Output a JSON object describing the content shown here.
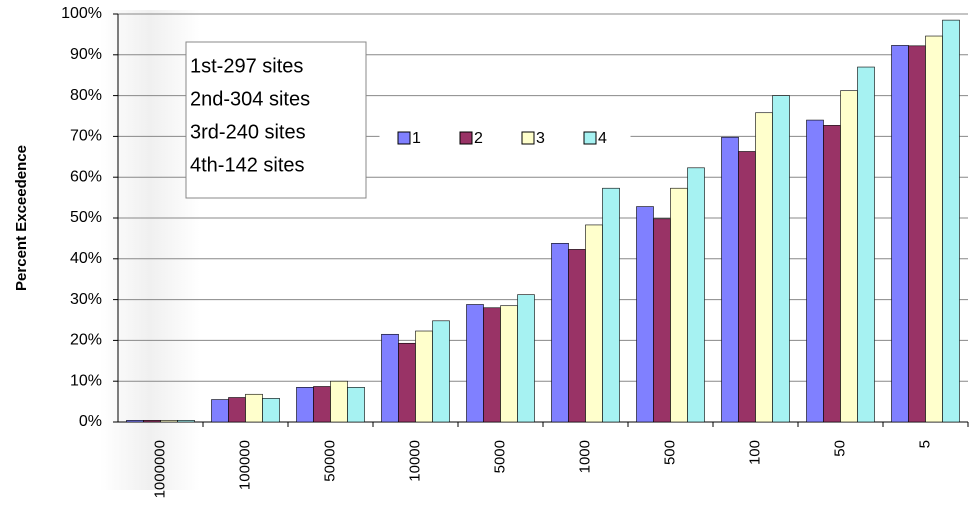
{
  "chart_data": {
    "type": "bar",
    "y_label": "Percent Exceedence",
    "categories": [
      "1000000",
      "100000",
      "50000",
      "10000",
      "5000",
      "1000",
      "500",
      "100",
      "50",
      "5"
    ],
    "series": [
      {
        "name": "1",
        "color": "#8080ff",
        "values": [
          0.4,
          5.5,
          8.5,
          21.5,
          28.8,
          43.8,
          52.8,
          69.8,
          74,
          92.3
        ]
      },
      {
        "name": "2",
        "color": "#993366",
        "values": [
          0.4,
          6,
          8.7,
          19.3,
          28,
          42.3,
          49.8,
          66.3,
          72.7,
          92.2
        ]
      },
      {
        "name": "3",
        "color": "#ffffcc",
        "values": [
          0.4,
          6.8,
          10,
          22.3,
          28.5,
          48.3,
          57.3,
          75.8,
          81.2,
          94.6
        ]
      },
      {
        "name": "4",
        "color": "#a6f2f2",
        "values": [
          0.4,
          5.8,
          8.5,
          24.8,
          31.2,
          57.3,
          62.3,
          80,
          87,
          98.5
        ]
      }
    ],
    "annotations": [
      "1st-297 sites",
      "2nd-304 sites",
      "3rd-240 sites",
      "4th-142 sites"
    ],
    "ylim": [
      0,
      100
    ],
    "yticks": [
      {
        "value": 0,
        "label": "0%"
      },
      {
        "value": 10,
        "label": "10%"
      },
      {
        "value": 20,
        "label": "20%"
      },
      {
        "value": 30,
        "label": "30%"
      },
      {
        "value": 40,
        "label": "40%"
      },
      {
        "value": 50,
        "label": "50%"
      },
      {
        "value": 60,
        "label": "60%"
      },
      {
        "value": 70,
        "label": "70%"
      },
      {
        "value": 80,
        "label": "80%"
      },
      {
        "value": 90,
        "label": "90%"
      },
      {
        "value": 100,
        "label": "100%"
      }
    ],
    "grid": true
  }
}
